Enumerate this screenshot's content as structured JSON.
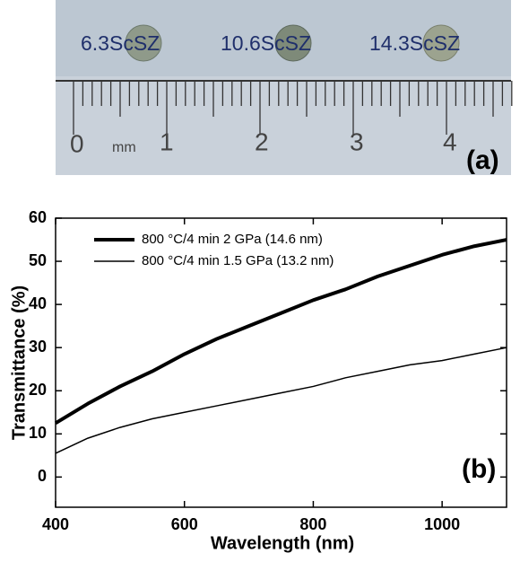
{
  "photo": {
    "labels": [
      "6.3ScSZ",
      "10.6ScSZ",
      "14.3ScSZ"
    ],
    "ruler": [
      "0",
      "mm",
      "1",
      "2",
      "3",
      "4"
    ],
    "panel": "(a)"
  },
  "chart_data": {
    "type": "line",
    "panel": "(b)",
    "x_label": "Wavelength  (nm)",
    "y_label": "Transmittance  (%)",
    "x": [
      400,
      450,
      500,
      550,
      600,
      650,
      700,
      750,
      800,
      850,
      900,
      950,
      1000,
      1050,
      1100
    ],
    "series": [
      {
        "name": "800 °C/4 min 2 GPa (14.6 nm)",
        "color": "#000000",
        "width": 4,
        "values": [
          12.5,
          17,
          21,
          24.5,
          28.5,
          32,
          35,
          38,
          41,
          43.5,
          46.5,
          49,
          51.5,
          53.5,
          55
        ]
      },
      {
        "name": "800 °C/4 min 1.5 GPa (13.2 nm)",
        "color": "#000000",
        "width": 1.5,
        "values": [
          5.5,
          9,
          11.5,
          13.5,
          15,
          16.5,
          18,
          19.5,
          21,
          23,
          24.5,
          26,
          27,
          28.5,
          30
        ]
      }
    ],
    "xlim": [
      400,
      1100
    ],
    "xticks": [
      400,
      600,
      800,
      1000
    ],
    "ylim": [
      -7,
      60
    ],
    "yticks": [
      0,
      10,
      20,
      30,
      40,
      50,
      60
    ],
    "legend": "upper left"
  }
}
